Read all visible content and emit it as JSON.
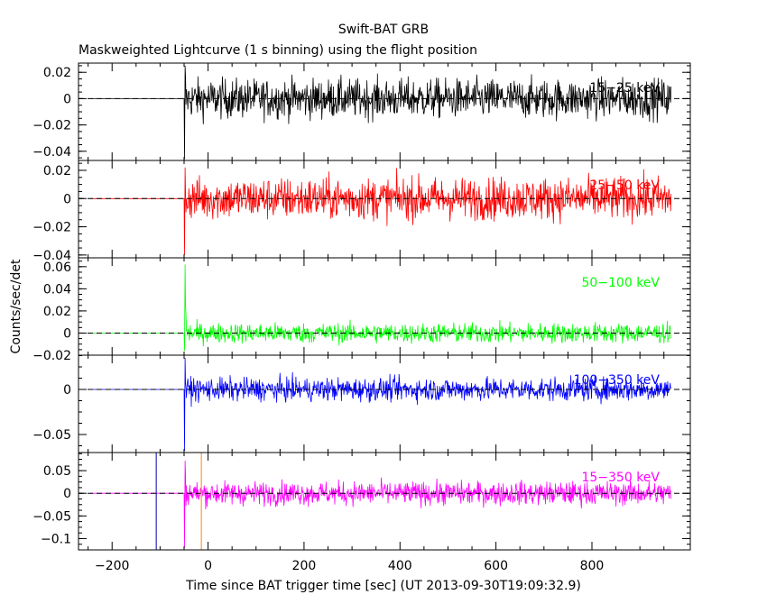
{
  "chart_data": {
    "type": "line",
    "title": "Swift-BAT GRB",
    "subtitle": "Maskweighted Lightcurve (1 s binning) using the flight position",
    "xlabel": "Time since BAT trigger time [sec] (UT 2013-09-30T19:09:32.9)",
    "ylabel": "Counts/sec/det",
    "xlim": [
      -270,
      1005
    ],
    "x_ticks": [
      -200,
      0,
      200,
      400,
      600,
      800
    ],
    "x_tick_labels": [
      "−200",
      "0",
      "200",
      "400",
      "600",
      "800"
    ],
    "data_start": -245,
    "quiet_until": -50,
    "data_end": 965,
    "burst_time": -50,
    "markers": [
      {
        "x": -108,
        "color": "#0000aa"
      },
      {
        "x": -14,
        "color": "#ff8800"
      }
    ],
    "panels": [
      {
        "name": "15-25 keV",
        "label": "15−25 keV",
        "color": "#000000",
        "ylim": [
          -0.047,
          0.027
        ],
        "y_ticks": [
          0.02,
          0,
          -0.02,
          -0.04
        ],
        "y_tick_labels": [
          "0.02",
          "0",
          "−0.02",
          "−0.04"
        ],
        "noise": 0.0075,
        "spike_max": 0.025,
        "spike_min": -0.046
      },
      {
        "name": "25-50 keV",
        "label": "25−50 keV",
        "color": "#ff0000",
        "ylim": [
          -0.042,
          0.027
        ],
        "y_ticks": [
          0.02,
          0,
          -0.02,
          -0.04
        ],
        "y_tick_labels": [
          "0.02",
          "0",
          "−0.02",
          "−0.04"
        ],
        "noise": 0.0075,
        "spike_max": 0.022,
        "spike_min": -0.04
      },
      {
        "name": "50-100 keV",
        "label": "50−100 keV",
        "color": "#00ff00",
        "ylim": [
          -0.02,
          0.068
        ],
        "y_ticks": [
          0.06,
          0.04,
          0.02,
          0,
          -0.02
        ],
        "y_tick_labels": [
          "0.06",
          "0.04",
          "0.02",
          "0",
          "−0.02"
        ],
        "noise": 0.0045,
        "spike_max": 0.062,
        "spike_min": -0.016
      },
      {
        "name": "100-350 keV",
        "label": "100−350 keV",
        "color": "#0000ff",
        "ylim": [
          -0.07,
          0.038
        ],
        "y_ticks": [
          0,
          -0.05
        ],
        "y_tick_labels": [
          "0",
          "−0.05"
        ],
        "noise": 0.0065,
        "spike_max": 0.035,
        "spike_min": -0.068
      },
      {
        "name": "15-350 keV",
        "label": "15−350 keV",
        "color": "#ff00ff",
        "ylim": [
          -0.125,
          0.09
        ],
        "y_ticks": [
          0.05,
          0,
          -0.05,
          -0.1
        ],
        "y_tick_labels": [
          "0.05",
          "0",
          "−0.05",
          "−0.1"
        ],
        "noise": 0.013,
        "spike_max": 0.072,
        "spike_min": -0.12
      }
    ]
  }
}
